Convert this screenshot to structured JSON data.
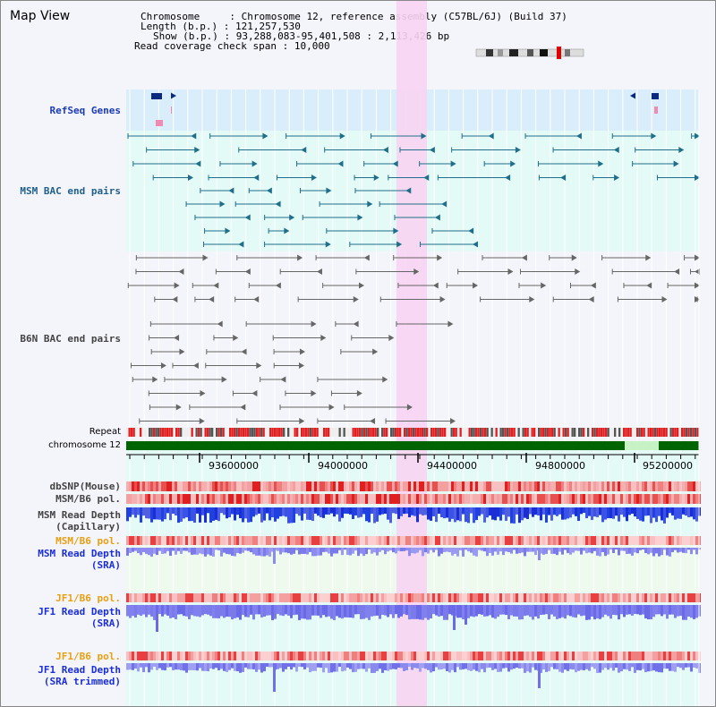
{
  "title": "Map View",
  "info": {
    "chromosome_label": "Chromosome",
    "chromosome_value": "Chromosome 12, reference assembly (C57BL/6J) (Build 37)",
    "length_label": "Length (b.p.)",
    "length_value": "121,257,530",
    "show_label": "Show (b.p.)",
    "show_value": "93,288,083-95,401,508 : 2,113,426 bp",
    "coverage_label": "Read coverage check span",
    "coverage_value": "10,000"
  },
  "tracks": {
    "refseq": "RefSeq Genes",
    "msm_bac": "MSM BAC end pairs",
    "b6n_bac": "B6N BAC end pairs",
    "repeat": "Repeat",
    "chromosome": "chromosome 12",
    "dbsnp": "dbSNP(Mouse)",
    "msm_b6_pol_1": "MSM/B6 pol.",
    "msm_depth_cap_1": "MSM Read Depth",
    "msm_depth_cap_2": "(Capillary)",
    "msm_b6_pol_2": "MSM/B6 pol.",
    "msm_depth_sra_1": "MSM Read Depth",
    "msm_depth_sra_2": "(SRA)",
    "jf1_b6_pol_1": "JF1/B6 pol.",
    "jf1_depth_sra_1": "JF1 Read Depth",
    "jf1_depth_sra_2": "(SRA)",
    "jf1_b6_pol_2": "JF1/B6 pol.",
    "jf1_depth_trim_1": "JF1 Read Depth",
    "jf1_depth_trim_2": "(SRA trimmed)"
  },
  "axis_ticks": [
    "93600000",
    "94000000",
    "94400000",
    "94800000",
    "95200000"
  ],
  "colors": {
    "refseq_label": "#1a3ab8",
    "msm_label": "#1f5f8a",
    "b6n_label": "#444444",
    "pol_orange": "#e8a010",
    "depth_blue": "#1a2ed8",
    "highlight": "#f7d4f2",
    "chrom_green": "#006400"
  }
}
